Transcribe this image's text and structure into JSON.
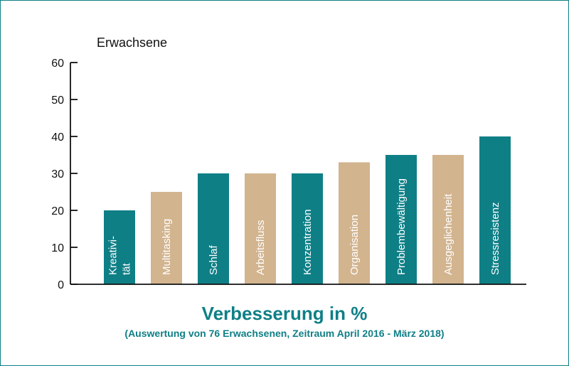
{
  "chart_data": {
    "type": "bar",
    "corner_label": "Erwachsene",
    "title": "Verbesserung in %",
    "subtitle": "(Auswertung von 76 Erwachsenen, Zeitraum April 2016 - März 2018)",
    "ylim": [
      0,
      60
    ],
    "yticks": [
      0,
      10,
      20,
      30,
      40,
      50,
      60
    ],
    "grid": false,
    "categories": [
      [
        "Kreativi-",
        "tät"
      ],
      [
        "Multitasking"
      ],
      [
        "Schlaf"
      ],
      [
        "Arbeitsfluss"
      ],
      [
        "Konzentration"
      ],
      [
        "Organisation"
      ],
      [
        "Problembewältigung"
      ],
      [
        "Ausgeglichenheit"
      ],
      [
        "Stressresistenz"
      ]
    ],
    "values": [
      20,
      25,
      30,
      30,
      30,
      33,
      35,
      35,
      40
    ],
    "bar_colors": [
      "#0f7f86",
      "#d2b48f",
      "#0f7f86",
      "#d2b48f",
      "#0f7f86",
      "#d2b48f",
      "#0f7f86",
      "#d2b48f",
      "#0f7f86"
    ]
  }
}
